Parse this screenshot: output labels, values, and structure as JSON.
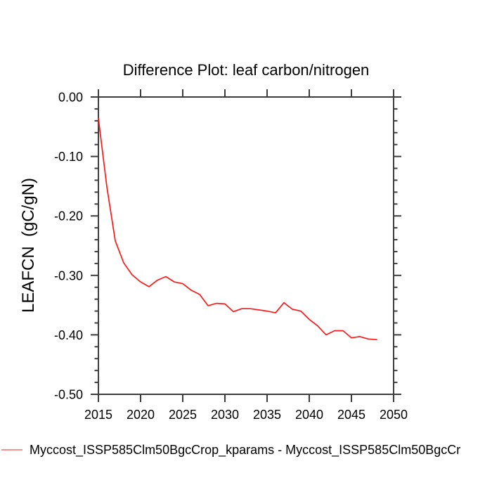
{
  "title": "Difference Plot: leaf carbon/nitrogen",
  "colors": {
    "background": "#ffffff",
    "axis": "#3d3d3d",
    "text": "#000000",
    "line": "#fb1919",
    "legend_swatch": "#f98f8f"
  },
  "legend": {
    "label": "Myccost_ISSP585Clm50BgcCrop_kparams - Myccost_ISSP585Clm50BgcCr"
  },
  "chart_data": {
    "type": "line",
    "title": "Difference Plot: leaf carbon/nitrogen",
    "xlabel": "",
    "ylabel": "LEAFCN  (gC/gN)",
    "xlim": [
      2015,
      2050
    ],
    "ylim": [
      -0.5,
      0.0
    ],
    "xticks": [
      2015,
      2020,
      2025,
      2030,
      2035,
      2040,
      2045,
      2050
    ],
    "xtick_labels": [
      "2015",
      "2020",
      "2025",
      "2030",
      "2035",
      "2040",
      "2045",
      "2050"
    ],
    "yticks": [
      0.0,
      -0.1,
      -0.2,
      -0.3,
      -0.4,
      -0.5
    ],
    "ytick_labels": [
      "0.00",
      "-0.10",
      "-0.20",
      "-0.30",
      "-0.40",
      "-0.50"
    ],
    "y_minor_step": 0.02,
    "grid": false,
    "legend_position": "bottom-left",
    "series": [
      {
        "name": "Myccost_ISSP585Clm50BgcCrop_kparams - Myccost_ISSP585Clm50BgcCr",
        "color": "#fb1919",
        "x": [
          2015,
          2016,
          2017,
          2018,
          2019,
          2020,
          2021,
          2022,
          2023,
          2024,
          2025,
          2026,
          2027,
          2028,
          2029,
          2030,
          2031,
          2032,
          2033,
          2034,
          2035,
          2036,
          2037,
          2038,
          2039,
          2040,
          2041,
          2042,
          2043,
          2044,
          2045,
          2046,
          2047,
          2048
        ],
        "values": [
          -0.036,
          -0.151,
          -0.242,
          -0.279,
          -0.299,
          -0.311,
          -0.319,
          -0.308,
          -0.302,
          -0.311,
          -0.314,
          -0.325,
          -0.332,
          -0.351,
          -0.347,
          -0.348,
          -0.361,
          -0.356,
          -0.356,
          -0.358,
          -0.36,
          -0.363,
          -0.346,
          -0.357,
          -0.36,
          -0.374,
          -0.385,
          -0.4,
          -0.393,
          -0.393,
          -0.405,
          -0.403,
          -0.407,
          -0.408
        ]
      }
    ]
  }
}
